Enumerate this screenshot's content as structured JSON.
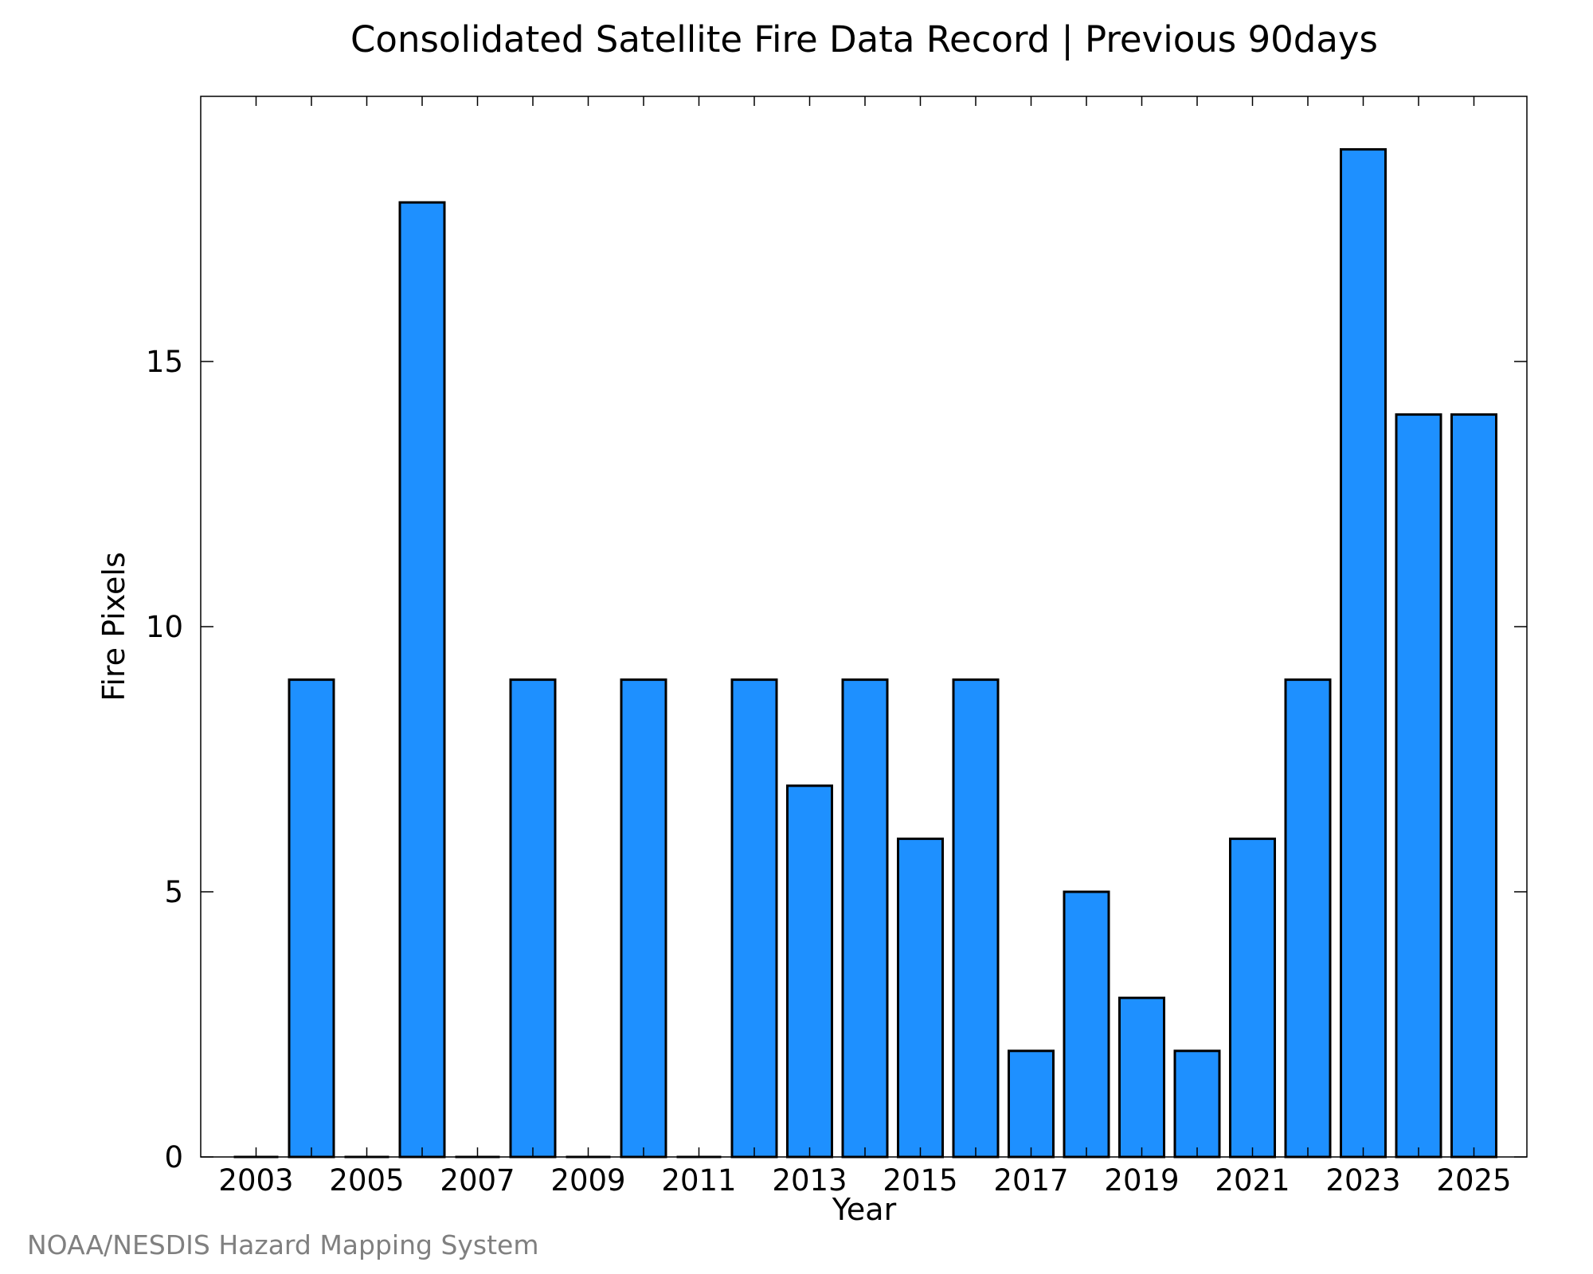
{
  "chart_data": {
    "type": "bar",
    "title": "Consolidated Satellite Fire Data Record | Previous 90days",
    "xlabel": "Year",
    "ylabel": "Fire Pixels",
    "categories": [
      "2003",
      "2004",
      "2005",
      "2006",
      "2007",
      "2008",
      "2009",
      "2010",
      "2011",
      "2012",
      "2013",
      "2014",
      "2015",
      "2016",
      "2017",
      "2018",
      "2019",
      "2020",
      "2021",
      "2022",
      "2023",
      "2024",
      "2025"
    ],
    "values": [
      0,
      9,
      0,
      18,
      0,
      9,
      0,
      9,
      0,
      9,
      7,
      9,
      6,
      9,
      2,
      5,
      3,
      2,
      6,
      9,
      19,
      14,
      14
    ],
    "x_tick_labels": [
      "2003",
      "2005",
      "2007",
      "2009",
      "2011",
      "2013",
      "2015",
      "2017",
      "2019",
      "2021",
      "2023",
      "2025"
    ],
    "y_ticks": [
      "0",
      "5",
      "10",
      "15"
    ],
    "ylim": [
      0,
      20
    ],
    "grid": false,
    "bar_color": "#1e90ff",
    "edge_color": "#000000"
  },
  "credit": "NOAA/NESDIS Hazard Mapping System"
}
